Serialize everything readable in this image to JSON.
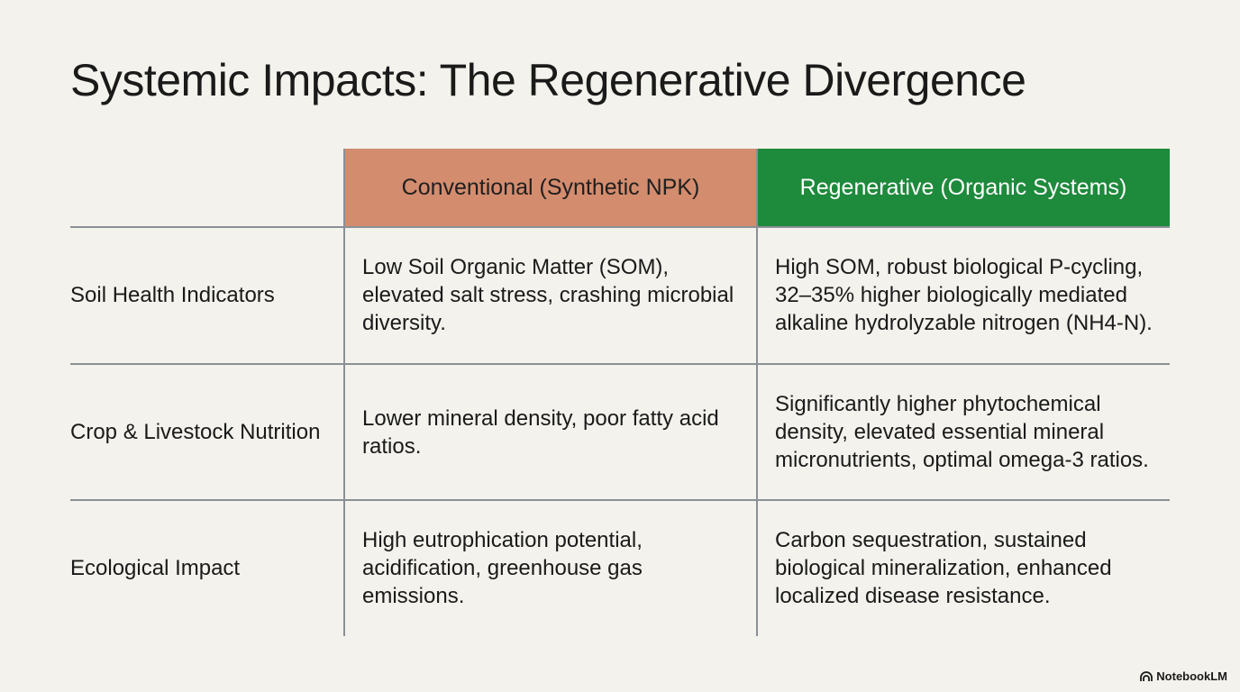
{
  "header": {
    "title": "Systemic Impacts: The Regenerative Divergence"
  },
  "table": {
    "columns": [
      "Conventional (Synthetic NPK)",
      "Regenerative (Organic Systems)"
    ],
    "rows": [
      [
        "Soil Health Indicators",
        "Low Soil Organic Matter (SOM), elevated salt stress, crashing microbial diversity.",
        "High SOM, robust biological P-cycling, 32–35% higher biologically mediated alkaline hydrolyzable nitrogen (NH4-N)."
      ],
      [
        "Crop & Livestock Nutrition",
        "Lower mineral density, poor fatty acid ratios.",
        "Significantly higher phytochemical density, elevated essential mineral micronutrients, optimal omega-3 ratios."
      ],
      [
        "Ecological Impact",
        "High eutrophication potential, acidification, greenhouse gas emissions.",
        "Carbon sequestration, sustained biological mineralization, enhanced localized disease resistance."
      ]
    ]
  },
  "footer": {
    "brand": "NotebookLM"
  }
}
